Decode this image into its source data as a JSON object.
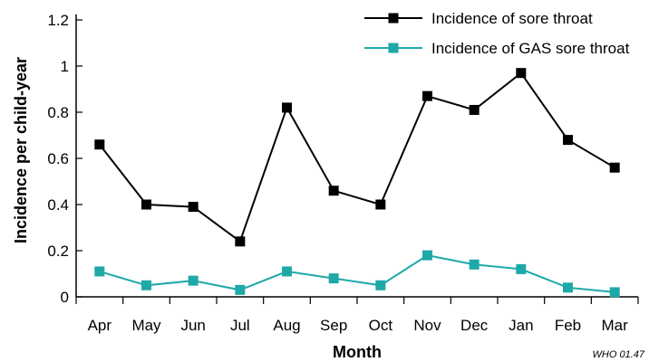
{
  "chart_data": {
    "type": "line",
    "title": "",
    "xlabel": "Month",
    "ylabel": "Incidence per child-year",
    "categories": [
      "Apr",
      "May",
      "Jun",
      "Jul",
      "Aug",
      "Sep",
      "Oct",
      "Nov",
      "Dec",
      "Jan",
      "Feb",
      "Mar"
    ],
    "ylim": [
      0,
      1.2
    ],
    "yticks": [
      "0",
      "0.2",
      "0.4",
      "0.6",
      "0.8",
      "1",
      "1.2"
    ],
    "grid": false,
    "legend_position": "top-right",
    "series": [
      {
        "name": "Incidence of sore throat",
        "color": "#000000",
        "marker": "square",
        "values": [
          0.66,
          0.4,
          0.39,
          0.24,
          0.82,
          0.46,
          0.4,
          0.87,
          0.81,
          0.97,
          0.68,
          0.56
        ]
      },
      {
        "name": "Incidence of GAS sore throat",
        "color": "#1fa8a8",
        "marker": "square",
        "values": [
          0.11,
          0.05,
          0.07,
          0.03,
          0.11,
          0.08,
          0.05,
          0.18,
          0.14,
          0.12,
          0.04,
          0.02
        ]
      }
    ]
  },
  "credit": "WHO 01.47"
}
